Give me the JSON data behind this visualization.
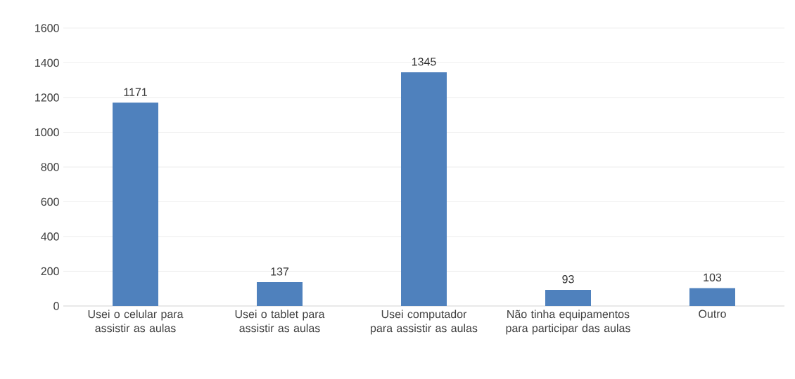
{
  "chart_data": {
    "type": "bar",
    "categories": [
      "Usei o celular para assistir as aulas",
      "Usei o tablet para assistir as aulas",
      "Usei computador para assistir as aulas",
      "Não tinha equipamentos para participar das aulas",
      "Outro"
    ],
    "values": [
      1171,
      137,
      1345,
      93,
      103
    ],
    "color": "#4f81bd",
    "ylim": [
      0,
      1600
    ],
    "yticks": [
      0,
      200,
      400,
      600,
      800,
      1000,
      1200,
      1400,
      1600
    ],
    "grid": "y",
    "data_labels": true
  }
}
